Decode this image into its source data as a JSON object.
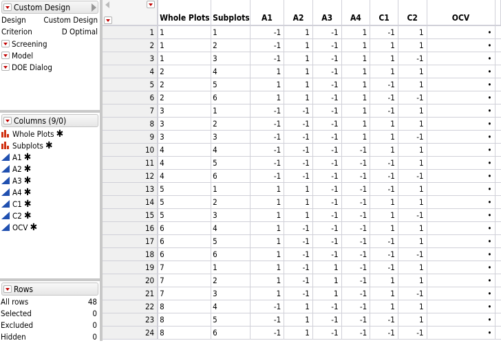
{
  "design_panel": {
    "title": "Custom Design",
    "props": [
      {
        "label": "Design",
        "value": "Custom Design"
      },
      {
        "label": "Criterion",
        "value": "D Optimal"
      }
    ],
    "scripts": [
      "Screening",
      "Model",
      "DOE Dialog"
    ]
  },
  "columns_panel": {
    "title": "Columns (9/0)",
    "columns": [
      {
        "name": "Whole Plots",
        "type": "nominal"
      },
      {
        "name": "Subplots",
        "type": "nominal"
      },
      {
        "name": "A1",
        "type": "continuous"
      },
      {
        "name": "A2",
        "type": "continuous"
      },
      {
        "name": "A3",
        "type": "continuous"
      },
      {
        "name": "A4",
        "type": "continuous"
      },
      {
        "name": "C1",
        "type": "continuous"
      },
      {
        "name": "C2",
        "type": "continuous"
      },
      {
        "name": "OCV",
        "type": "continuous"
      }
    ]
  },
  "rows_panel": {
    "title": "Rows",
    "stats": [
      {
        "label": "All rows",
        "value": "48"
      },
      {
        "label": "Selected",
        "value": "0"
      },
      {
        "label": "Excluded",
        "value": "0"
      },
      {
        "label": "Hidden",
        "value": "0"
      }
    ]
  },
  "table": {
    "headers": [
      "Whole Plots",
      "Subplots",
      "A1",
      "A2",
      "A3",
      "A4",
      "C1",
      "C2",
      "OCV"
    ],
    "rows": [
      [
        "1",
        "1",
        "-1",
        "1",
        "-1",
        "1",
        "-1",
        "1",
        "•"
      ],
      [
        "1",
        "2",
        "-1",
        "1",
        "-1",
        "1",
        "1",
        "1",
        "•"
      ],
      [
        "1",
        "3",
        "-1",
        "1",
        "-1",
        "1",
        "1",
        "-1",
        "•"
      ],
      [
        "2",
        "4",
        "1",
        "1",
        "-1",
        "1",
        "1",
        "1",
        "•"
      ],
      [
        "2",
        "5",
        "1",
        "1",
        "-1",
        "1",
        "-1",
        "1",
        "•"
      ],
      [
        "2",
        "6",
        "1",
        "1",
        "-1",
        "1",
        "-1",
        "-1",
        "•"
      ],
      [
        "3",
        "1",
        "-1",
        "-1",
        "-1",
        "1",
        "-1",
        "1",
        "•"
      ],
      [
        "3",
        "2",
        "-1",
        "-1",
        "-1",
        "1",
        "1",
        "1",
        "•"
      ],
      [
        "3",
        "3",
        "-1",
        "-1",
        "-1",
        "1",
        "1",
        "-1",
        "•"
      ],
      [
        "4",
        "4",
        "-1",
        "-1",
        "-1",
        "-1",
        "1",
        "1",
        "•"
      ],
      [
        "4",
        "5",
        "-1",
        "-1",
        "-1",
        "-1",
        "-1",
        "1",
        "•"
      ],
      [
        "4",
        "6",
        "-1",
        "-1",
        "-1",
        "-1",
        "-1",
        "-1",
        "•"
      ],
      [
        "5",
        "1",
        "1",
        "1",
        "-1",
        "-1",
        "-1",
        "1",
        "•"
      ],
      [
        "5",
        "2",
        "1",
        "1",
        "-1",
        "-1",
        "1",
        "1",
        "•"
      ],
      [
        "5",
        "3",
        "1",
        "1",
        "-1",
        "-1",
        "1",
        "-1",
        "•"
      ],
      [
        "6",
        "4",
        "1",
        "-1",
        "-1",
        "-1",
        "1",
        "1",
        "•"
      ],
      [
        "6",
        "5",
        "1",
        "-1",
        "-1",
        "-1",
        "-1",
        "1",
        "•"
      ],
      [
        "6",
        "6",
        "1",
        "-1",
        "-1",
        "-1",
        "-1",
        "-1",
        "•"
      ],
      [
        "7",
        "1",
        "1",
        "-1",
        "1",
        "-1",
        "-1",
        "1",
        "•"
      ],
      [
        "7",
        "2",
        "1",
        "-1",
        "1",
        "-1",
        "1",
        "1",
        "•"
      ],
      [
        "7",
        "3",
        "1",
        "-1",
        "1",
        "-1",
        "1",
        "-1",
        "•"
      ],
      [
        "8",
        "4",
        "-1",
        "1",
        "-1",
        "-1",
        "1",
        "1",
        "•"
      ],
      [
        "8",
        "5",
        "-1",
        "1",
        "-1",
        "-1",
        "-1",
        "1",
        "•"
      ],
      [
        "8",
        "6",
        "-1",
        "1",
        "-1",
        "-1",
        "-1",
        "-1",
        "•"
      ]
    ]
  },
  "colors": {
    "menu_triangle": "#c00000",
    "nominal_icon": "#d03010",
    "continuous_icon": "#2050b0"
  }
}
